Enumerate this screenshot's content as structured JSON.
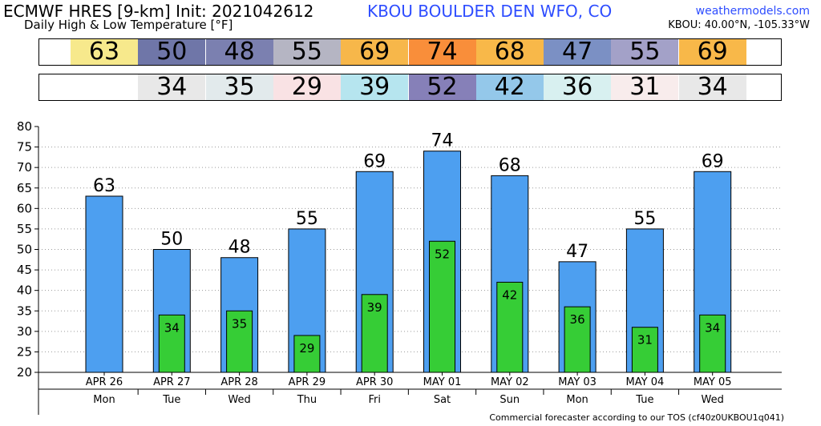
{
  "header": {
    "title": "ECMWF HRES [9-km] Init: 2021042612",
    "subtitle": "Daily High & Low Temperature [°F]",
    "station": "KBOU BOULDER DEN WFO, CO",
    "site": "weathermodels.com",
    "coords": "KBOU: 40.00°N, -105.33°W"
  },
  "strips": {
    "high_colors": [
      "#f7e98c",
      "#6f76a8",
      "#7b80b0",
      "#b5b5c3",
      "#f7b74a",
      "#f98e3a",
      "#f8b849",
      "#7b90c4",
      "#a3a1c8",
      "#f8b849"
    ],
    "low_colors": [
      null,
      "#e8e8e8",
      "#e2eaec",
      "#f9e2e4",
      "#b6e5ef",
      "#8680b8",
      "#94c8ea",
      "#d8f0f0",
      "#f8ecec",
      "#e8e8e8"
    ]
  },
  "chart_data": {
    "type": "bar",
    "dates": [
      "APR 26",
      "APR 27",
      "APR 28",
      "APR 29",
      "APR 30",
      "MAY 01",
      "MAY 02",
      "MAY 03",
      "MAY 04",
      "MAY 05"
    ],
    "weekdays": [
      "Mon",
      "Tue",
      "Wed",
      "Thu",
      "Fri",
      "Sat",
      "Sun",
      "Mon",
      "Tue",
      "Wed"
    ],
    "series": [
      {
        "values": [
          63,
          50,
          48,
          55,
          69,
          74,
          68,
          47,
          55,
          69
        ],
        "color": "#4d9ff0"
      },
      {
        "values": [
          null,
          34,
          35,
          29,
          39,
          52,
          42,
          36,
          31,
          34
        ],
        "color": "#36cd36"
      }
    ],
    "ylim": [
      20,
      80
    ],
    "yticks": [
      20,
      25,
      30,
      35,
      40,
      45,
      50,
      55,
      60,
      65,
      70,
      75,
      80
    ],
    "grid": true
  },
  "footer": "Commercial forecaster according to our TOS (cf40z0UKBOU1q041)"
}
